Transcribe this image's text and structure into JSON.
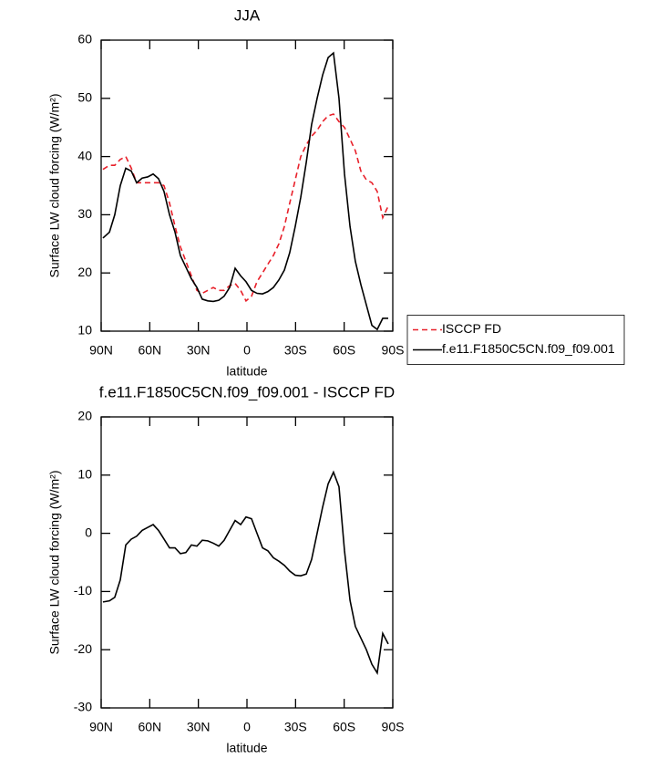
{
  "chart_data": [
    {
      "type": "line",
      "title": "JJA",
      "xlabel": "latitude",
      "ylabel": "Surface LW cloud forcing (W/m²)",
      "x": [
        88.9,
        84.9,
        81.6,
        78.2,
        74.8,
        71.4,
        68.1,
        64.7,
        61.3,
        57.9,
        54.6,
        51.2,
        47.8,
        44.4,
        41.1,
        37.7,
        34.3,
        30.9,
        27.6,
        24.2,
        20.8,
        17.4,
        14.1,
        10.7,
        7.3,
        3.9,
        0.6,
        -2.8,
        -6.2,
        -9.6,
        -12.9,
        -16.3,
        -19.7,
        -23.1,
        -26.4,
        -29.8,
        -33.2,
        -36.6,
        -39.9,
        -43.3,
        -46.7,
        -50.1,
        -53.4,
        -56.8,
        -60.2,
        -63.6,
        -66.9,
        -70.3,
        -73.7,
        -77.1,
        -80.4,
        -83.8,
        -87.2
      ],
      "series": [
        {
          "name": "ISCCP FD",
          "color": "#e8202a",
          "line_style": "dashed",
          "values": [
            37.8,
            38.5,
            38.5,
            39.5,
            40,
            38,
            35.5,
            35.5,
            35.5,
            35.5,
            35.5,
            35,
            32,
            28,
            24.5,
            22,
            19.5,
            17,
            16.5,
            17,
            17.5,
            17,
            17,
            17.8,
            18.2,
            17,
            15.2,
            16,
            18.5,
            20,
            21.5,
            23,
            25,
            28,
            32,
            36,
            40,
            42,
            43.5,
            44.5,
            46,
            47,
            47.3,
            46,
            45,
            43,
            41,
            37.5,
            36,
            35.5,
            34,
            29.5,
            31.5
          ]
        },
        {
          "name": "f.e11.F1850C5CN.f09_f09.001",
          "color": "#000000",
          "line_style": "solid",
          "values": [
            26,
            27,
            30,
            35,
            38,
            37.5,
            35.5,
            36.3,
            36.5,
            37,
            36.2,
            34,
            30,
            27,
            23,
            21,
            19,
            17.5,
            15.5,
            15.2,
            15.1,
            15.3,
            16,
            17.5,
            20.8,
            19.5,
            18.5,
            17,
            16.5,
            16.4,
            16.8,
            17.5,
            18.8,
            20.5,
            23.5,
            28,
            33,
            39,
            45.5,
            50,
            54,
            57,
            57.8,
            50,
            37,
            28,
            22,
            18,
            14.5,
            11,
            10.3,
            12.2,
            12.2
          ]
        }
      ],
      "xlim": [
        90,
        -90
      ],
      "xticks": [
        {
          "value": 90,
          "label": "90N"
        },
        {
          "value": 60,
          "label": "60N"
        },
        {
          "value": 30,
          "label": "30N"
        },
        0,
        {
          "value": -30,
          "label": "30S"
        },
        {
          "value": -60,
          "label": "60S"
        },
        {
          "value": -90,
          "label": "90S"
        }
      ],
      "ylim": [
        10,
        60
      ],
      "yticks": [
        10,
        20,
        30,
        40,
        50,
        60
      ],
      "legend": "right"
    },
    {
      "type": "line",
      "title": "f.e11.F1850C5CN.f09_f09.001 - ISCCP FD",
      "xlabel": "latitude",
      "ylabel": "Surface LW cloud forcing (W/m²)",
      "x": [
        88.9,
        84.9,
        81.6,
        78.2,
        74.8,
        71.4,
        68.1,
        64.7,
        61.3,
        57.9,
        54.6,
        51.2,
        47.8,
        44.4,
        41.1,
        37.7,
        34.3,
        30.9,
        27.6,
        24.2,
        20.8,
        17.4,
        14.1,
        10.7,
        7.3,
        3.9,
        0.6,
        -2.8,
        -6.2,
        -9.6,
        -12.9,
        -16.3,
        -19.7,
        -23.1,
        -26.4,
        -29.8,
        -33.2,
        -36.6,
        -39.9,
        -43.3,
        -46.7,
        -50.1,
        -53.4,
        -56.8,
        -60.2,
        -63.6,
        -66.9,
        -70.3,
        -73.7,
        -77.1,
        -80.4,
        -83.8,
        -87.2
      ],
      "series": [
        {
          "color": "#000000",
          "line_style": "solid",
          "values": [
            -11.8,
            -11.6,
            -11,
            -8,
            -2,
            -1,
            -0.5,
            0.5,
            1,
            1.5,
            0.5,
            -1,
            -2.5,
            -2.5,
            -3.5,
            -3.3,
            -2,
            -2.2,
            -1.2,
            -1.3,
            -1.7,
            -2.2,
            -1.2,
            0.5,
            2.2,
            1.5,
            2.8,
            2.5,
            0,
            -2.5,
            -3,
            -4.2,
            -4.8,
            -5.5,
            -6.5,
            -7.2,
            -7.3,
            -7,
            -4.5,
            0,
            4.5,
            8.5,
            10.5,
            8,
            -3,
            -11.5,
            -16,
            -18,
            -20,
            -22.5,
            -24,
            -17.2,
            -19
          ]
        }
      ],
      "xlim": [
        90,
        -90
      ],
      "xticks": [
        {
          "value": 90,
          "label": "90N"
        },
        {
          "value": 60,
          "label": "60N"
        },
        {
          "value": 30,
          "label": "30N"
        },
        0,
        {
          "value": -30,
          "label": "30S"
        },
        {
          "value": -60,
          "label": "60S"
        },
        {
          "value": -90,
          "label": "90S"
        }
      ],
      "ylim": [
        -30,
        20
      ],
      "yticks": [
        -30,
        -20,
        -10,
        0,
        10,
        20
      ]
    }
  ]
}
